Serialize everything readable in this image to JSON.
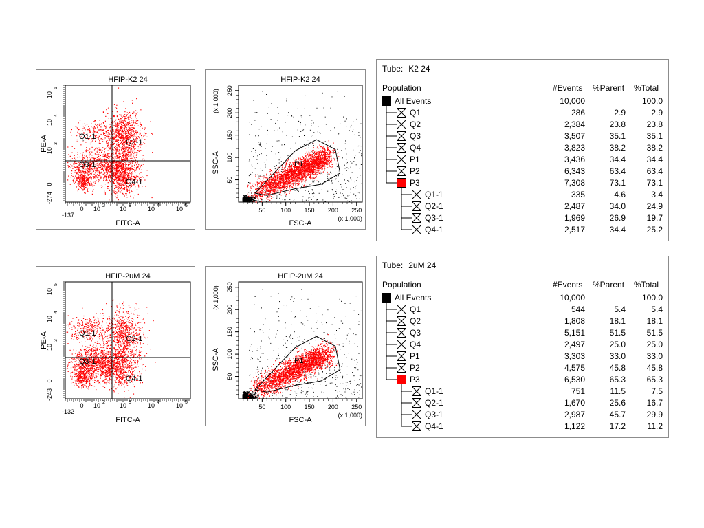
{
  "plots": [
    {
      "kind": "quad",
      "title": "HFIP-K2 24",
      "xlabel": "FITC-A",
      "ylabel": "PE-A",
      "xmin_label": "-137",
      "ymin_label": "-274",
      "quadrants": [
        "Q1-1",
        "Q2-1",
        "Q3-1",
        "Q4-1"
      ],
      "point_color": "#ff0000"
    },
    {
      "kind": "scatter",
      "title": "HFIP-K2 24",
      "xlabel": "FSC-A",
      "ylabel": "SSC-A",
      "xscale_note": "(x 1,000)",
      "yscale_note": "(x 1,000)",
      "xticks": [
        "50",
        "100",
        "150",
        "200",
        "250"
      ],
      "yticks": [
        "50",
        "100",
        "150",
        "200",
        "250"
      ],
      "gate_label": "P1",
      "gated_color": "#ff0000",
      "ungated_color": "#000000"
    },
    {
      "kind": "quad",
      "title": "HFIP-2uM 24",
      "xlabel": "FITC-A",
      "ylabel": "PE-A",
      "xmin_label": "-132",
      "ymin_label": "-243",
      "quadrants": [
        "Q1-1",
        "Q2-1",
        "Q3-1",
        "Q4-1"
      ],
      "point_color": "#ff0000"
    },
    {
      "kind": "scatter",
      "title": "HFIP-2uM 24",
      "xlabel": "FSC-A",
      "ylabel": "SSC-A",
      "xscale_note": "(x 1,000)",
      "yscale_note": "(x 1,000)",
      "xticks": [
        "50",
        "100",
        "150",
        "200",
        "250"
      ],
      "yticks": [
        "50",
        "100",
        "150",
        "200",
        "250"
      ],
      "gate_label": "P1",
      "gated_color": "#ff0000",
      "ungated_color": "#000000"
    }
  ],
  "tables": [
    {
      "tube_label": "Tube:",
      "tube_name": "K2 24",
      "headers": [
        "Population",
        "#Events",
        "%Parent",
        "%Total"
      ],
      "rows": [
        {
          "name": "All Events",
          "events": "10,000",
          "parent": "",
          "total": "100.0",
          "level": 0,
          "swatch": "black"
        },
        {
          "name": "Q1",
          "events": "286",
          "parent": "2.9",
          "total": "2.9",
          "level": 1,
          "swatch": "x"
        },
        {
          "name": "Q2",
          "events": "2,384",
          "parent": "23.8",
          "total": "23.8",
          "level": 1,
          "swatch": "x"
        },
        {
          "name": "Q3",
          "events": "3,507",
          "parent": "35.1",
          "total": "35.1",
          "level": 1,
          "swatch": "x"
        },
        {
          "name": "Q4",
          "events": "3,823",
          "parent": "38.2",
          "total": "38.2",
          "level": 1,
          "swatch": "x"
        },
        {
          "name": "P1",
          "events": "3,436",
          "parent": "34.4",
          "total": "34.4",
          "level": 1,
          "swatch": "x"
        },
        {
          "name": "P2",
          "events": "6,343",
          "parent": "63.4",
          "total": "63.4",
          "level": 1,
          "swatch": "x"
        },
        {
          "name": "P3",
          "events": "7,308",
          "parent": "73.1",
          "total": "73.1",
          "level": 1,
          "swatch": "red"
        },
        {
          "name": "Q1-1",
          "events": "335",
          "parent": "4.6",
          "total": "3.4",
          "level": 2,
          "swatch": "x"
        },
        {
          "name": "Q2-1",
          "events": "2,487",
          "parent": "34.0",
          "total": "24.9",
          "level": 2,
          "swatch": "x"
        },
        {
          "name": "Q3-1",
          "events": "1,969",
          "parent": "26.9",
          "total": "19.7",
          "level": 2,
          "swatch": "x"
        },
        {
          "name": "Q4-1",
          "events": "2,517",
          "parent": "34.4",
          "total": "25.2",
          "level": 2,
          "swatch": "x"
        }
      ]
    },
    {
      "tube_label": "Tube:",
      "tube_name": "2uM 24",
      "headers": [
        "Population",
        "#Events",
        "%Parent",
        "%Total"
      ],
      "rows": [
        {
          "name": "All Events",
          "events": "10,000",
          "parent": "",
          "total": "100.0",
          "level": 0,
          "swatch": "black"
        },
        {
          "name": "Q1",
          "events": "544",
          "parent": "5.4",
          "total": "5.4",
          "level": 1,
          "swatch": "x"
        },
        {
          "name": "Q2",
          "events": "1,808",
          "parent": "18.1",
          "total": "18.1",
          "level": 1,
          "swatch": "x"
        },
        {
          "name": "Q3",
          "events": "5,151",
          "parent": "51.5",
          "total": "51.5",
          "level": 1,
          "swatch": "x"
        },
        {
          "name": "Q4",
          "events": "2,497",
          "parent": "25.0",
          "total": "25.0",
          "level": 1,
          "swatch": "x"
        },
        {
          "name": "P1",
          "events": "3,303",
          "parent": "33.0",
          "total": "33.0",
          "level": 1,
          "swatch": "x"
        },
        {
          "name": "P2",
          "events": "4,575",
          "parent": "45.8",
          "total": "45.8",
          "level": 1,
          "swatch": "x"
        },
        {
          "name": "P3",
          "events": "6,530",
          "parent": "65.3",
          "total": "65.3",
          "level": 1,
          "swatch": "red"
        },
        {
          "name": "Q1-1",
          "events": "751",
          "parent": "11.5",
          "total": "7.5",
          "level": 2,
          "swatch": "x"
        },
        {
          "name": "Q2-1",
          "events": "1,670",
          "parent": "25.6",
          "total": "16.7",
          "level": 2,
          "swatch": "x"
        },
        {
          "name": "Q3-1",
          "events": "2,987",
          "parent": "45.7",
          "total": "29.9",
          "level": 2,
          "swatch": "x"
        },
        {
          "name": "Q4-1",
          "events": "1,122",
          "parent": "17.2",
          "total": "11.2",
          "level": 2,
          "swatch": "x"
        }
      ]
    }
  ],
  "chart_data": [
    {
      "type": "scatter",
      "title": "HFIP-K2 24",
      "xlabel": "FITC-A",
      "ylabel": "PE-A",
      "xscale": "log",
      "yscale": "log",
      "xtick_labels": [
        "-137",
        "0",
        "10^2",
        "10^3",
        "10^4",
        "10^5"
      ],
      "ytick_labels": [
        "-274",
        "0",
        "10^3",
        "10^4",
        "10^5"
      ],
      "quadrant_labels": [
        "Q1-1",
        "Q2-1",
        "Q3-1",
        "Q4-1"
      ],
      "quadrant_percent_parent": {
        "Q1-1": 4.6,
        "Q2-1": 34.0,
        "Q3-1": 26.9,
        "Q4-1": 34.4
      },
      "events": 7308,
      "grid": false
    },
    {
      "type": "scatter",
      "title": "HFIP-K2 24",
      "xlabel": "FSC-A",
      "ylabel": "SSC-A",
      "xlim": [
        0,
        262
      ],
      "ylim": [
        0,
        262
      ],
      "units": "x 1,000",
      "gate": "P1",
      "gate_polygon": [
        [
          35,
          20
        ],
        [
          120,
          115
        ],
        [
          165,
          140
        ],
        [
          205,
          118
        ],
        [
          215,
          65
        ],
        [
          175,
          40
        ],
        [
          120,
          30
        ],
        [
          60,
          15
        ]
      ],
      "grid": false
    },
    {
      "type": "scatter",
      "title": "HFIP-2uM 24",
      "xlabel": "FITC-A",
      "ylabel": "PE-A",
      "xscale": "log",
      "yscale": "log",
      "xtick_labels": [
        "-132",
        "0",
        "10^2",
        "10^3",
        "10^4",
        "10^5"
      ],
      "ytick_labels": [
        "-243",
        "0",
        "10^3",
        "10^4",
        "10^5"
      ],
      "quadrant_labels": [
        "Q1-1",
        "Q2-1",
        "Q3-1",
        "Q4-1"
      ],
      "quadrant_percent_parent": {
        "Q1-1": 11.5,
        "Q2-1": 25.6,
        "Q3-1": 45.7,
        "Q4-1": 17.2
      },
      "events": 6530,
      "grid": false
    },
    {
      "type": "scatter",
      "title": "HFIP-2uM 24",
      "xlabel": "FSC-A",
      "ylabel": "SSC-A",
      "xlim": [
        0,
        262
      ],
      "ylim": [
        0,
        262
      ],
      "units": "x 1,000",
      "gate": "P1",
      "gate_polygon": [
        [
          35,
          20
        ],
        [
          120,
          115
        ],
        [
          165,
          140
        ],
        [
          205,
          118
        ],
        [
          215,
          65
        ],
        [
          175,
          40
        ],
        [
          120,
          30
        ],
        [
          60,
          15
        ]
      ],
      "grid": false
    }
  ]
}
